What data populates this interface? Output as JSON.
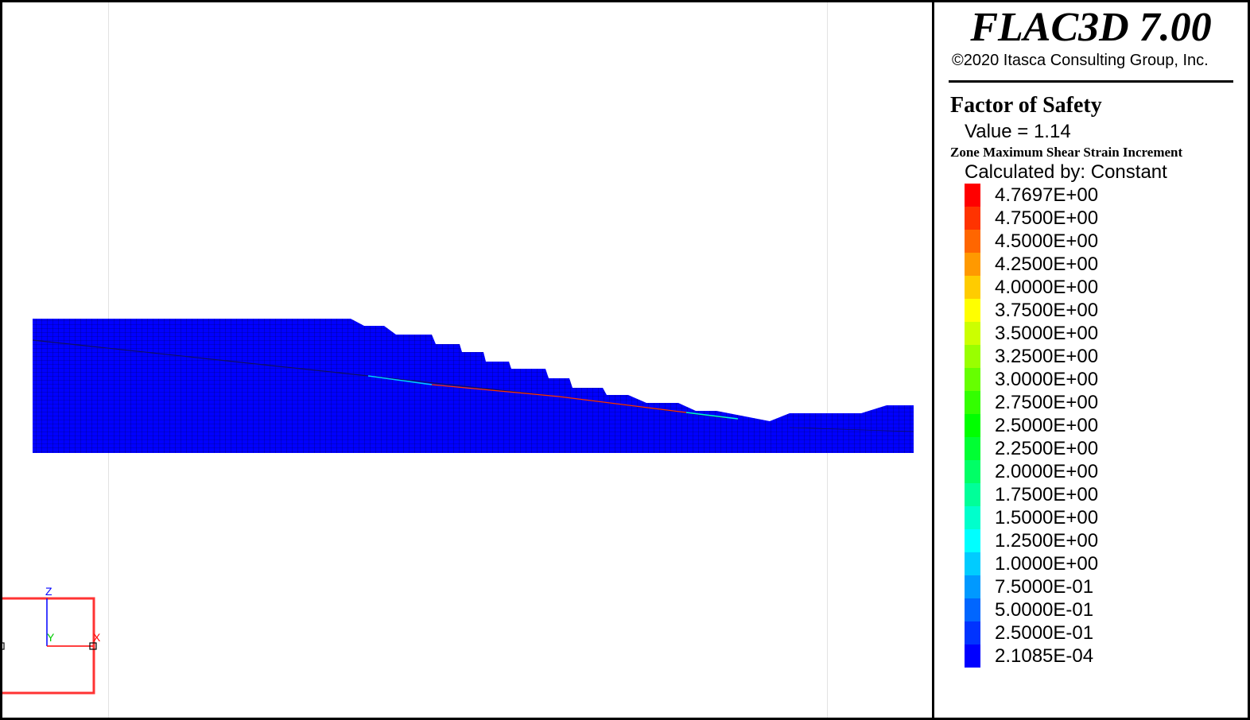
{
  "header": {
    "app_title": "FLAC3D 7.00",
    "copyright": "©2020 Itasca Consulting Group, Inc."
  },
  "legend": {
    "fos_title": "Factor of Safety",
    "fos_value": "Value = 1.14",
    "contour_title": "Zone Maximum Shear Strain Increment",
    "calculated_by": "Calculated by: Constant",
    "levels": [
      {
        "label": "4.7697E+00",
        "color": "#ff0000"
      },
      {
        "label": "4.7500E+00",
        "color": "#ff3300"
      },
      {
        "label": "4.5000E+00",
        "color": "#ff6600"
      },
      {
        "label": "4.2500E+00",
        "color": "#ff9900"
      },
      {
        "label": "4.0000E+00",
        "color": "#ffcc00"
      },
      {
        "label": "3.7500E+00",
        "color": "#ffff00"
      },
      {
        "label": "3.5000E+00",
        "color": "#ccff00"
      },
      {
        "label": "3.2500E+00",
        "color": "#99ff00"
      },
      {
        "label": "3.0000E+00",
        "color": "#66ff00"
      },
      {
        "label": "2.7500E+00",
        "color": "#33ff00"
      },
      {
        "label": "2.5000E+00",
        "color": "#00ff00"
      },
      {
        "label": "2.2500E+00",
        "color": "#00ff33"
      },
      {
        "label": "2.0000E+00",
        "color": "#00ff66"
      },
      {
        "label": "1.7500E+00",
        "color": "#00ff99"
      },
      {
        "label": "1.5000E+00",
        "color": "#00ffcc"
      },
      {
        "label": "1.2500E+00",
        "color": "#00ffff"
      },
      {
        "label": "1.0000E+00",
        "color": "#00ccff"
      },
      {
        "label": "7.5000E-01",
        "color": "#0099ff"
      },
      {
        "label": "5.0000E-01",
        "color": "#0066ff"
      },
      {
        "label": "2.5000E-01",
        "color": "#0033ff"
      },
      {
        "label": "2.1085E-04",
        "color": "#0000ff"
      }
    ]
  },
  "model": {
    "fill_color": "#0000ff",
    "mesh_line_color": "#000060"
  },
  "axes": {
    "z_label": "Z",
    "y_label": "Y",
    "x_label": "X",
    "z_color": "#0000ff",
    "y_color": "#00cc00",
    "x_color": "#ff0000",
    "box_color": "#ff3333"
  }
}
